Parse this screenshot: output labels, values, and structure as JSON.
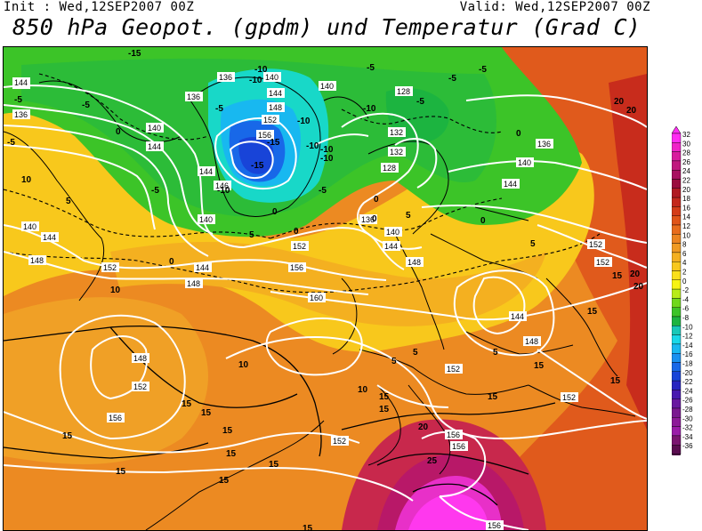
{
  "header": {
    "init": "Init : Wed,12SEP2007 00Z",
    "valid": "Valid: Wed,12SEP2007 00Z",
    "title": "850 hPa Geopot. (gpdm) und Temperatur (Grad C)"
  },
  "legend": {
    "values": [
      "32",
      "30",
      "28",
      "26",
      "24",
      "22",
      "20",
      "18",
      "16",
      "14",
      "12",
      "10",
      "8",
      "6",
      "4",
      "2",
      "0",
      "-2",
      "-4",
      "-6",
      "-8",
      "-10",
      "-12",
      "-14",
      "-16",
      "-18",
      "-20",
      "-22",
      "-24",
      "-26",
      "-28",
      "-30",
      "-32",
      "-34",
      "-36"
    ],
    "colors": [
      "#ff2cf2",
      "#f023c8",
      "#d81c9e",
      "#c0187e",
      "#a81060",
      "#9a0c3e",
      "#b01a22",
      "#c4281c",
      "#d43c18",
      "#e05418",
      "#e86c1c",
      "#ec8420",
      "#f09a22",
      "#f4b020",
      "#f8c81c",
      "#fae01a",
      "#f6f414",
      "#b8ec18",
      "#70d81c",
      "#3cc428",
      "#1cb440",
      "#18c8b8",
      "#18d8e8",
      "#18b8f0",
      "#1890f0",
      "#1868e8",
      "#1844d8",
      "#2824c0",
      "#4818b0",
      "#6818a0",
      "#7a1890",
      "#8c1a98",
      "#9a1ca8",
      "#7a1470",
      "#5a0c50"
    ]
  },
  "contours": {
    "geopotential": [
      "136",
      "140",
      "144",
      "152",
      "156",
      "146",
      "138",
      "128",
      "132",
      "140",
      "136",
      "144",
      "140",
      "148",
      "152",
      "156",
      "160",
      "148",
      "152",
      "156",
      "144",
      "148",
      "152",
      "152",
      "156",
      "152",
      "156",
      "152",
      "156"
    ],
    "temperature": [
      "-15",
      "-10",
      "-5",
      "0",
      "5",
      "10",
      "15",
      "20",
      "25"
    ]
  }
}
